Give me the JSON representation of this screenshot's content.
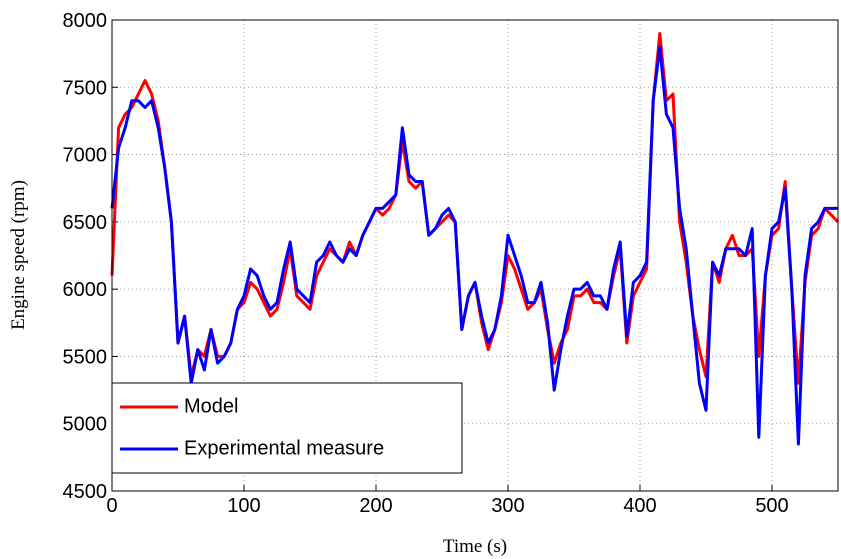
{
  "chart_data": {
    "type": "line",
    "xlabel": "Time (s)",
    "ylabel": "Engine speed (rpm)",
    "x": [
      0,
      5,
      10,
      15,
      20,
      25,
      30,
      35,
      40,
      45,
      50,
      55,
      60,
      65,
      70,
      75,
      80,
      85,
      90,
      95,
      100,
      105,
      110,
      115,
      120,
      125,
      130,
      135,
      140,
      145,
      150,
      155,
      160,
      165,
      170,
      175,
      180,
      185,
      190,
      195,
      200,
      205,
      210,
      215,
      220,
      225,
      230,
      235,
      240,
      245,
      250,
      255,
      260,
      265,
      270,
      275,
      280,
      285,
      290,
      295,
      300,
      305,
      310,
      315,
      320,
      325,
      330,
      335,
      340,
      345,
      350,
      355,
      360,
      365,
      370,
      375,
      380,
      385,
      390,
      395,
      400,
      405,
      410,
      415,
      420,
      425,
      430,
      435,
      440,
      445,
      450,
      455,
      460,
      465,
      470,
      475,
      480,
      485,
      490,
      495,
      500,
      505,
      510,
      515,
      520,
      525,
      530,
      535,
      540,
      545,
      550
    ],
    "series": [
      {
        "name": "Model",
        "color": "#ff0000",
        "values": [
          6100,
          7200,
          7300,
          7350,
          7450,
          7550,
          7450,
          7250,
          6900,
          6500,
          5600,
          5800,
          5350,
          5550,
          5500,
          5700,
          5500,
          5500,
          5600,
          5850,
          5900,
          6050,
          6000,
          5900,
          5800,
          5850,
          6050,
          6300,
          5950,
          5900,
          5850,
          6100,
          6200,
          6300,
          6250,
          6200,
          6350,
          6250,
          6400,
          6500,
          6600,
          6550,
          6600,
          6700,
          7100,
          6800,
          6750,
          6800,
          6400,
          6450,
          6500,
          6550,
          6500,
          5700,
          5950,
          6050,
          5750,
          5550,
          5700,
          5900,
          6250,
          6150,
          6000,
          5850,
          5900,
          6000,
          5700,
          5450,
          5600,
          5700,
          5950,
          5950,
          6000,
          5900,
          5900,
          5850,
          6100,
          6300,
          5600,
          5950,
          6050,
          6150,
          7400,
          7900,
          7400,
          7450,
          6500,
          6200,
          5800,
          5550,
          5350,
          6200,
          6050,
          6300,
          6400,
          6250,
          6250,
          6300,
          5500,
          6100,
          6400,
          6450,
          6800,
          6000,
          5300,
          6050,
          6400,
          6450,
          6600,
          6550,
          6500
        ]
      },
      {
        "name": "Experimental measure",
        "color": "#0000ff",
        "values": [
          6600,
          7050,
          7200,
          7400,
          7400,
          7350,
          7400,
          7200,
          6900,
          6500,
          5600,
          5800,
          5300,
          5550,
          5400,
          5700,
          5450,
          5500,
          5600,
          5850,
          5950,
          6150,
          6100,
          5950,
          5850,
          5900,
          6150,
          6350,
          6000,
          5950,
          5900,
          6200,
          6250,
          6350,
          6250,
          6200,
          6300,
          6250,
          6400,
          6500,
          6600,
          6600,
          6650,
          6700,
          7200,
          6850,
          6800,
          6800,
          6400,
          6450,
          6550,
          6600,
          6500,
          5700,
          5950,
          6050,
          5800,
          5600,
          5700,
          5950,
          6400,
          6250,
          6100,
          5900,
          5900,
          6050,
          5750,
          5250,
          5550,
          5800,
          6000,
          6000,
          6050,
          5950,
          5950,
          5850,
          6150,
          6350,
          5650,
          6050,
          6100,
          6200,
          7400,
          7800,
          7300,
          7200,
          6600,
          6300,
          5800,
          5300,
          5100,
          6200,
          6100,
          6300,
          6300,
          6300,
          6250,
          6450,
          4900,
          6100,
          6450,
          6500,
          6750,
          6000,
          4850,
          6100,
          6450,
          6500,
          6600,
          6600,
          6600
        ]
      }
    ],
    "xlim": [
      0,
      550
    ],
    "xticks": [
      0,
      100,
      200,
      300,
      400,
      500
    ],
    "ylim": [
      4500,
      8000
    ],
    "yticks": [
      4500,
      5000,
      5500,
      6000,
      6500,
      7000,
      7500,
      8000
    ],
    "grid": true,
    "legend": "lower left"
  }
}
